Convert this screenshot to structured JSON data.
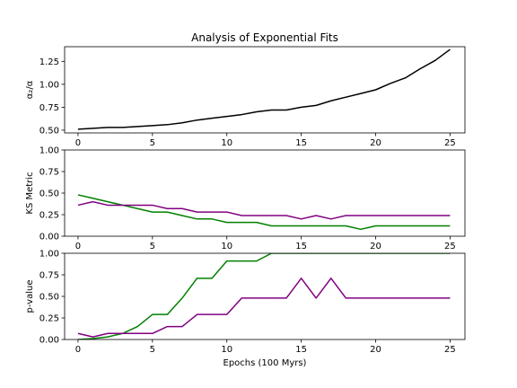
{
  "chart_data": [
    {
      "type": "line",
      "title": "Analysis of Exponential Fits",
      "ylabel": "α₂/α",
      "xlabel": "",
      "xlim": [
        -0.9,
        26.0
      ],
      "ylim": [
        0.47,
        1.41
      ],
      "xticks": [
        0,
        5,
        10,
        15,
        20,
        25
      ],
      "yticks": [
        0.5,
        0.75,
        1.0,
        1.25
      ],
      "ytick_labels": [
        "0.50",
        "0.75",
        "1.00",
        "1.25"
      ],
      "grid": false,
      "series": [
        {
          "color": "#000000",
          "x": [
            0,
            1,
            2,
            3,
            4,
            5,
            6,
            7,
            8,
            9,
            10,
            11,
            12,
            13,
            14,
            15,
            16,
            17,
            18,
            19,
            20,
            21,
            22,
            23,
            24,
            25
          ],
          "y": [
            0.51,
            0.52,
            0.53,
            0.53,
            0.54,
            0.55,
            0.56,
            0.58,
            0.61,
            0.63,
            0.65,
            0.67,
            0.7,
            0.72,
            0.72,
            0.75,
            0.77,
            0.82,
            0.86,
            0.9,
            0.94,
            1.01,
            1.07,
            1.17,
            1.26,
            1.38
          ]
        }
      ]
    },
    {
      "type": "line",
      "title": "",
      "ylabel": "KS Metric",
      "xlabel": "",
      "xlim": [
        -0.9,
        26.0
      ],
      "ylim": [
        0.0,
        1.0
      ],
      "xticks": [
        0,
        5,
        10,
        15,
        20,
        25
      ],
      "yticks": [
        0.0,
        0.25,
        0.5,
        0.75,
        1.0
      ],
      "ytick_labels": [
        "0.00",
        "0.25",
        "0.50",
        "0.75",
        "1.00"
      ],
      "grid": false,
      "series": [
        {
          "color": "#008000",
          "x": [
            0,
            1,
            2,
            3,
            4,
            5,
            6,
            7,
            8,
            9,
            10,
            11,
            12,
            13,
            14,
            15,
            16,
            17,
            18,
            19,
            20,
            21,
            22,
            23,
            24,
            25
          ],
          "y": [
            0.48,
            0.44,
            0.4,
            0.36,
            0.32,
            0.28,
            0.28,
            0.24,
            0.2,
            0.2,
            0.16,
            0.16,
            0.16,
            0.12,
            0.12,
            0.12,
            0.12,
            0.12,
            0.12,
            0.08,
            0.12,
            0.12,
            0.12,
            0.12,
            0.12,
            0.12
          ]
        },
        {
          "color": "#800080",
          "x": [
            0,
            1,
            2,
            3,
            4,
            5,
            6,
            7,
            8,
            9,
            10,
            11,
            12,
            13,
            14,
            15,
            16,
            17,
            18,
            19,
            20,
            21,
            22,
            23,
            24,
            25
          ],
          "y": [
            0.36,
            0.4,
            0.36,
            0.36,
            0.36,
            0.36,
            0.32,
            0.32,
            0.28,
            0.28,
            0.28,
            0.24,
            0.24,
            0.24,
            0.24,
            0.2,
            0.24,
            0.2,
            0.24,
            0.24,
            0.24,
            0.24,
            0.24,
            0.24,
            0.24,
            0.24
          ]
        }
      ]
    },
    {
      "type": "line",
      "title": "",
      "ylabel": "p-value",
      "xlabel": "Epochs (100 Myrs)",
      "xlim": [
        -0.9,
        26.0
      ],
      "ylim": [
        0.0,
        1.0
      ],
      "xticks": [
        0,
        5,
        10,
        15,
        20,
        25
      ],
      "yticks": [
        0.0,
        0.25,
        0.5,
        0.75,
        1.0
      ],
      "ytick_labels": [
        "0.00",
        "0.25",
        "0.50",
        "0.75",
        "1.00"
      ],
      "grid": false,
      "series": [
        {
          "color": "#008000",
          "x": [
            0,
            1,
            2,
            3,
            4,
            5,
            6,
            7,
            8,
            9,
            10,
            11,
            12,
            13,
            14,
            15,
            16,
            17,
            18,
            19,
            20,
            21,
            22,
            23,
            24,
            25
          ],
          "y": [
            0.0,
            0.01,
            0.03,
            0.07,
            0.15,
            0.29,
            0.29,
            0.48,
            0.71,
            0.71,
            0.91,
            0.91,
            0.91,
            1.0,
            1.0,
            1.0,
            1.0,
            1.0,
            1.0,
            1.0,
            1.0,
            1.0,
            1.0,
            1.0,
            1.0,
            1.0
          ]
        },
        {
          "color": "#800080",
          "x": [
            0,
            1,
            2,
            3,
            4,
            5,
            6,
            7,
            8,
            9,
            10,
            11,
            12,
            13,
            14,
            15,
            16,
            17,
            18,
            19,
            20,
            21,
            22,
            23,
            24,
            25
          ],
          "y": [
            0.07,
            0.03,
            0.07,
            0.07,
            0.07,
            0.07,
            0.15,
            0.15,
            0.29,
            0.29,
            0.29,
            0.48,
            0.48,
            0.48,
            0.48,
            0.71,
            0.48,
            0.71,
            0.48,
            0.48,
            0.48,
            0.48,
            0.48,
            0.48,
            0.48,
            0.48
          ]
        }
      ]
    }
  ]
}
